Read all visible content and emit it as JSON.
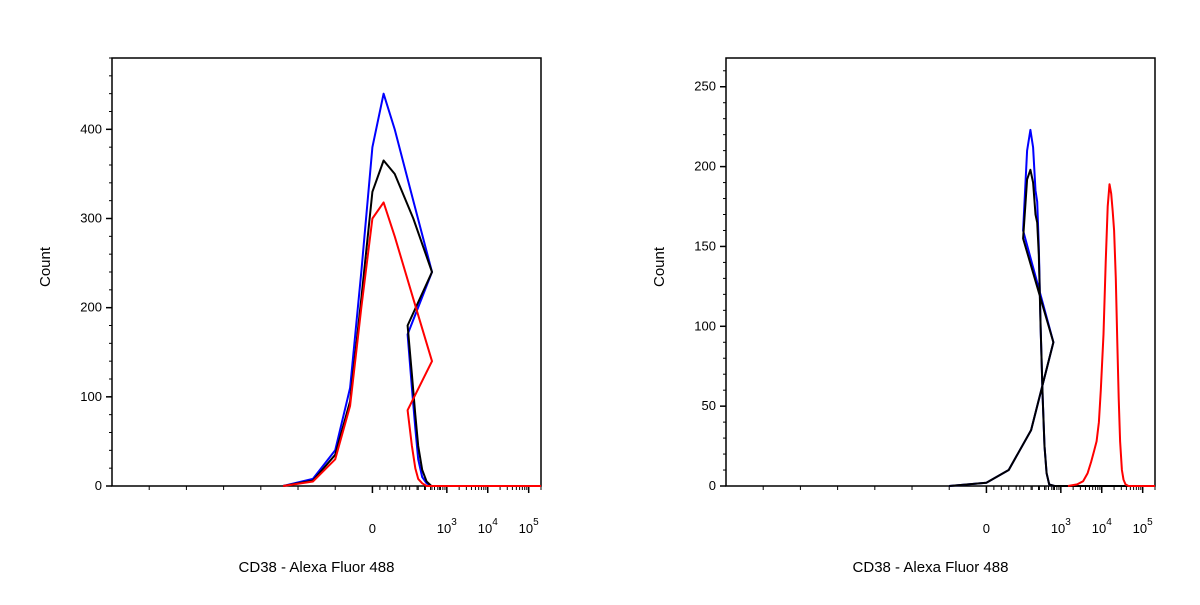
{
  "chart_data": [
    {
      "type": "line",
      "subtype": "flow-cytometry-histogram",
      "title": "",
      "xlabel": "CD38 - Alexa Fluor 488",
      "ylabel": "Count",
      "xscale": "biexponential",
      "xlim": [
        -300,
        200000
      ],
      "ylim": [
        0,
        480
      ],
      "yticks": [
        0,
        100,
        200,
        300,
        400
      ],
      "xticks": [
        {
          "value": 0,
          "base": "0",
          "exp": ""
        },
        {
          "value": 1000,
          "base": "10",
          "exp": "3"
        },
        {
          "value": 10000,
          "base": "10",
          "exp": "4"
        },
        {
          "value": 100000,
          "base": "10",
          "exp": "5"
        }
      ],
      "grid": false,
      "legend": "none",
      "series": [
        {
          "color": "#0000ff",
          "x": [
            -120,
            -80,
            -50,
            -30,
            -15,
            0,
            15,
            30,
            55,
            80,
            110,
            140,
            170,
            200,
            250,
            320,
            420,
            600,
            10000,
            200000
          ],
          "y": [
            0,
            8,
            40,
            110,
            240,
            380,
            440,
            400,
            320,
            240,
            170,
            110,
            65,
            30,
            10,
            3,
            0,
            0,
            0,
            0
          ]
        },
        {
          "color": "#000000",
          "x": [
            -120,
            -80,
            -50,
            -30,
            -15,
            0,
            15,
            30,
            55,
            80,
            110,
            140,
            170,
            200,
            250,
            320,
            420,
            600,
            10000,
            200000
          ],
          "y": [
            0,
            6,
            35,
            95,
            210,
            330,
            365,
            350,
            300,
            240,
            180,
            125,
            80,
            45,
            18,
            5,
            0,
            0,
            0,
            0
          ]
        },
        {
          "color": "#ff0000",
          "x": [
            -120,
            -80,
            -50,
            -30,
            -15,
            0,
            15,
            30,
            55,
            80,
            110,
            140,
            170,
            200,
            250,
            320,
            420,
            600,
            10000,
            200000
          ],
          "y": [
            0,
            5,
            30,
            90,
            200,
            300,
            318,
            280,
            210,
            140,
            85,
            45,
            20,
            8,
            3,
            0,
            0,
            0,
            0,
            0
          ]
        }
      ]
    },
    {
      "type": "line",
      "subtype": "flow-cytometry-histogram",
      "title": "",
      "xlabel": "CD38 - Alexa Fluor 488",
      "ylabel": "Count",
      "xscale": "biexponential",
      "xlim": [
        -300,
        200000
      ],
      "ylim": [
        0,
        268
      ],
      "yticks": [
        0,
        50,
        100,
        150,
        200,
        250
      ],
      "xticks": [
        {
          "value": 0,
          "base": "0",
          "exp": ""
        },
        {
          "value": 1000,
          "base": "10",
          "exp": "3"
        },
        {
          "value": 10000,
          "base": "10",
          "exp": "4"
        },
        {
          "value": 100000,
          "base": "10",
          "exp": "5"
        }
      ],
      "grid": false,
      "legend": "none",
      "series": [
        {
          "color": "#0000ff",
          "x": [
            -50,
            0,
            30,
            60,
            90,
            120,
            150,
            180,
            210,
            240,
            265,
            290,
            320,
            360,
            400,
            450,
            520,
            700,
            10000,
            200000
          ],
          "y": [
            0,
            2,
            10,
            35,
            90,
            160,
            210,
            223,
            212,
            185,
            178,
            150,
            100,
            55,
            25,
            8,
            1,
            0,
            0,
            0
          ]
        },
        {
          "color": "#000000",
          "x": [
            -50,
            0,
            30,
            60,
            90,
            120,
            150,
            180,
            210,
            240,
            265,
            290,
            320,
            360,
            400,
            450,
            520,
            700,
            10000,
            200000
          ],
          "y": [
            0,
            2,
            10,
            35,
            90,
            155,
            192,
            198,
            190,
            170,
            165,
            145,
            100,
            55,
            25,
            8,
            1,
            0,
            0,
            0
          ]
        },
        {
          "color": "#ff0000",
          "x": [
            1500,
            2500,
            3500,
            4500,
            5500,
            6500,
            7500,
            8500,
            9500,
            11000,
            12500,
            14000,
            15500,
            17000,
            18500,
            20000,
            22000,
            24000,
            26000,
            28000,
            31000,
            34000,
            38000,
            45000,
            60000,
            200000
          ],
          "y": [
            0,
            1,
            3,
            8,
            15,
            22,
            28,
            40,
            60,
            95,
            140,
            175,
            189,
            183,
            172,
            160,
            130,
            90,
            55,
            28,
            10,
            4,
            1,
            0,
            0,
            0
          ]
        }
      ]
    }
  ]
}
